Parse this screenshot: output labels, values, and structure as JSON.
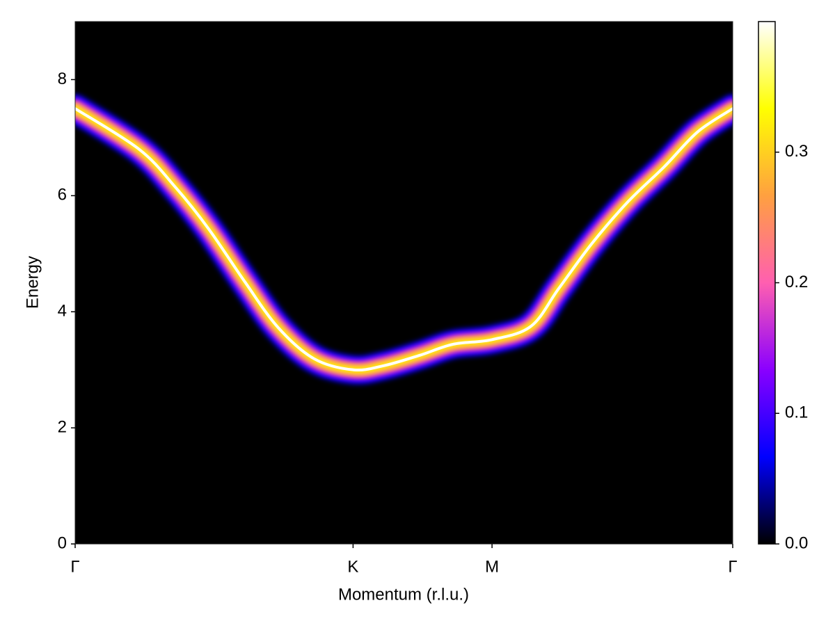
{
  "chart_data": {
    "type": "heatmap",
    "xlabel": "Momentum (r.l.u.)",
    "ylabel": "Energy",
    "x": [
      0,
      0.23,
      0.36,
      0.48,
      0.61,
      0.73,
      0.86,
      1.0,
      1.11,
      1.24,
      1.36,
      1.5,
      1.64,
      1.74,
      1.86,
      1.99,
      2.12,
      2.24,
      2.366
    ],
    "series": [
      {
        "values": [
          7.5,
          6.8,
          6.15,
          5.43,
          4.52,
          3.73,
          3.19,
          3.0,
          3.07,
          3.25,
          3.44,
          3.52,
          3.75,
          4.4,
          5.18,
          5.9,
          6.5,
          7.1,
          7.5
        ]
      }
    ],
    "xlim": [
      0,
      2.366
    ],
    "xticks": [
      {
        "value": 0,
        "label": "Γ"
      },
      {
        "value": 1.0,
        "label": "K"
      },
      {
        "value": 1.5,
        "label": "M"
      },
      {
        "value": 2.366,
        "label": "Γ"
      }
    ],
    "ylim": [
      0,
      9
    ],
    "yticks": [
      0,
      2,
      4,
      6,
      8
    ],
    "colormap": [
      "#000000",
      "#0000ff",
      "#8a00ff",
      "#ff5fb0",
      "#ffa040",
      "#ffff00",
      "#ffffff"
    ],
    "clim": [
      0,
      0.4
    ],
    "cticks": [
      {
        "value": 0,
        "label": "0.0"
      },
      0.1,
      0.2,
      0.3
    ]
  }
}
